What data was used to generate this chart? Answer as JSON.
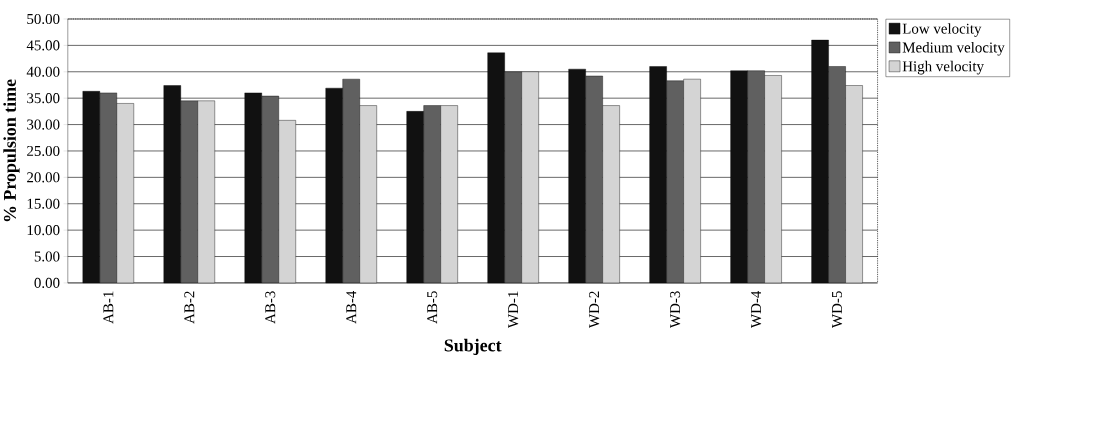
{
  "chart_data": {
    "type": "bar",
    "xlabel": "**Subject**",
    "ylabel": "**% Propulsion time**",
    "categories": [
      "AB-1",
      "AB-2",
      "AB-3",
      "AB-4",
      "AB-5",
      "WD-1",
      "WD-2",
      "WD-3",
      "WD-4",
      "WD-5"
    ],
    "series": [
      {
        "name": "Low velocity",
        "color": "#111111",
        "values": [
          36.3,
          37.4,
          36.0,
          36.9,
          32.5,
          43.6,
          40.5,
          41.0,
          40.2,
          46.0
        ]
      },
      {
        "name": "Medium velocity",
        "color": "#606060",
        "values": [
          36.0,
          34.5,
          35.4,
          38.6,
          33.6,
          40.0,
          39.2,
          38.3,
          40.2,
          41.0
        ]
      },
      {
        "name": "High velocity",
        "color": "#d4d4d4",
        "values": [
          34.0,
          34.5,
          30.8,
          33.6,
          33.6,
          40.0,
          33.6,
          38.6,
          39.3,
          37.4
        ]
      }
    ],
    "ylim": [
      0,
      50
    ],
    "yticks": [
      {
        "value": 0,
        "label": "0.00"
      },
      {
        "value": 5,
        "label": "5.00"
      },
      {
        "value": 10,
        "label": "10.00"
      },
      {
        "value": 15,
        "label": "15.00"
      },
      {
        "value": 20,
        "label": "20.00"
      },
      {
        "value": 25,
        "label": "25.00"
      },
      {
        "value": 30,
        "label": "30.00"
      },
      {
        "value": 35,
        "label": "35.00"
      },
      {
        "value": 40,
        "label": "40.00"
      },
      {
        "value": 45,
        "label": "45.00"
      },
      {
        "value": 50,
        "label": "50.00"
      }
    ],
    "grid": "y",
    "legend": "right"
  }
}
